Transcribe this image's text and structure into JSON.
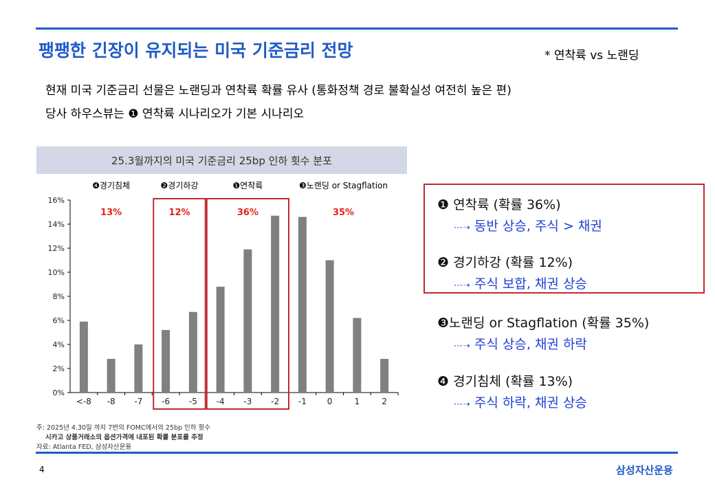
{
  "title": "팽팽한 긴장이 유지되는 미국 기준금리 전망",
  "title_note": "* 연착륙 vs 노랜딩",
  "summary": {
    "line1": "현재 미국 기준금리 선물은 노랜딩과 연착륙 확률 유사 (통화정책 경로 불확실성 여전히 높은 편)",
    "line2": "당사 하우스뷰는  ❶ 연착륙 시나리오가 기본 시나리오"
  },
  "chart_header": "25.3월까지의 미국 기준금리 25bp 인하 횟수 분포",
  "chart_data": {
    "type": "bar",
    "title": "25.3월까지의 미국 기준금리 25bp 인하 횟수 분포",
    "categories": [
      "<-8",
      "-8",
      "-7",
      "-6",
      "-5",
      "-4",
      "-3",
      "-2",
      "-1",
      "0",
      "1",
      "2"
    ],
    "values": [
      5.9,
      2.8,
      4.0,
      5.2,
      6.7,
      8.8,
      11.9,
      14.7,
      14.6,
      11.0,
      6.2,
      2.8
    ],
    "y_ticks": [
      "0%",
      "2%",
      "4%",
      "6%",
      "8%",
      "10%",
      "12%",
      "14%",
      "16%"
    ],
    "ylim": [
      0,
      16
    ],
    "unit": "%",
    "bar_color": "#808080",
    "groups": [
      {
        "label": "❹경기침체",
        "prob": "13%",
        "from": 0,
        "to": 2
      },
      {
        "label": "❷경기하강",
        "prob": "12%",
        "from": 3,
        "to": 4
      },
      {
        "label": "❶연착륙",
        "prob": "36%",
        "from": 5,
        "to": 7
      },
      {
        "label": "❸노랜딩 or Stagflation",
        "prob": "35%",
        "from": 8,
        "to": 11
      }
    ],
    "highlight_color": "#c0282d",
    "prob_color": "#e2231a"
  },
  "footnotes": [
    "주: 2025년 4.30일 까지 7번의 FOMC에서의 25bp 인하 횟수",
    "시카고 상품거래소의 옵션가격에 내포된 확률 분포를 추정",
    "자료: Atlanta FED, 삼성자산운용"
  ],
  "scenarios": [
    {
      "title": "❶ 연착륙 (확률 36%)",
      "detail": "동반 상승, 주식 > 채권"
    },
    {
      "title": "❷ 경기하강 (확률 12%)",
      "detail": "주식 보합, 채권 상승"
    },
    {
      "title": "❸노랜딩 or Stagflation (확률 35%)",
      "detail": "주식 상승, 채권 하락"
    },
    {
      "title": "❹ 경기침체 (확률 13%)",
      "detail": "주식 하락, 채권 상승"
    }
  ],
  "arrow_glyph": "⋯➝",
  "page_number": "4",
  "brand": "삼성자산운용",
  "colors": {
    "accent": "#1f5bc6",
    "highlight": "#c0282d",
    "link_blue": "#1f3fd6"
  }
}
